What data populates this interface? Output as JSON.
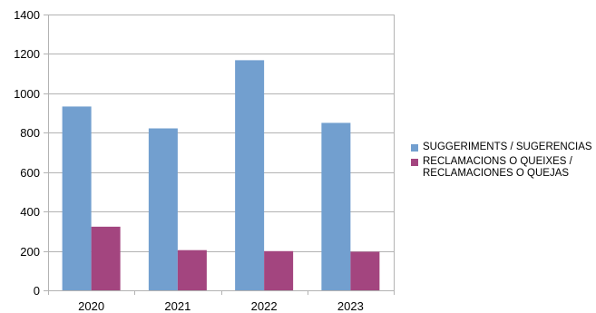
{
  "chart_data": {
    "type": "bar",
    "categories": [
      "2020",
      "2021",
      "2022",
      "2023"
    ],
    "series": [
      {
        "name": "SUGGERIMENTS / SUGERENCIAS",
        "values": [
          933,
          822,
          1168,
          850
        ],
        "color": "#729fcf"
      },
      {
        "name": "RECLAMACIONS O QUEIXES /\nRECLAMACIONES O QUEJAS",
        "values": [
          323,
          204,
          199,
          196
        ],
        "color": "#a3457f"
      }
    ],
    "ylim": [
      0,
      1400
    ],
    "yticks": [
      0,
      200,
      400,
      600,
      800,
      1000,
      1200,
      1400
    ],
    "grid": true,
    "legend_position": "right",
    "title": "",
    "xlabel": "",
    "ylabel": ""
  }
}
